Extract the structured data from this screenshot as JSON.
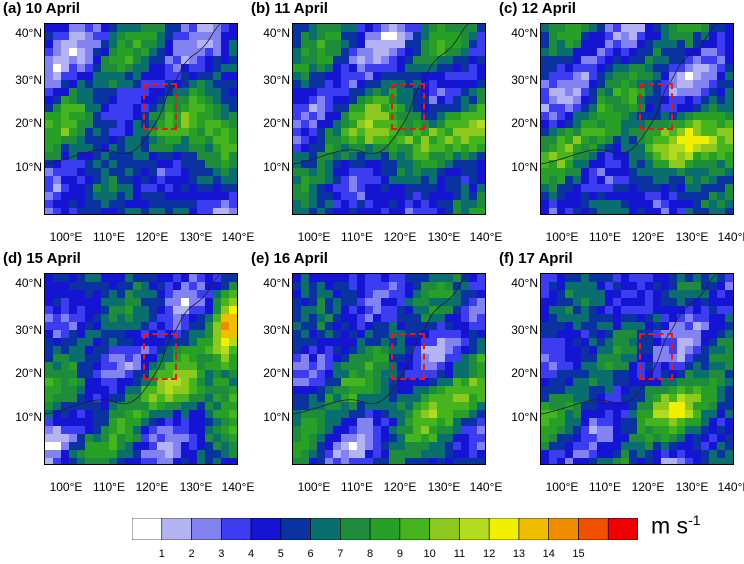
{
  "panels": [
    {
      "title": "(a) 10 April"
    },
    {
      "title": "(b) 11 April"
    },
    {
      "title": "(c) 12 April"
    },
    {
      "title": "(d) 15 April"
    },
    {
      "title": "(e) 16 April"
    },
    {
      "title": "(f) 17 April"
    }
  ],
  "axes": {
    "y_ticks": [
      "40°N",
      "30°N",
      "20°N",
      "10°N"
    ],
    "x_ticks": [
      "100°E",
      "110°E",
      "120°E",
      "130°E",
      "140°E"
    ]
  },
  "colorbar": {
    "colors": [
      "#ffffff",
      "#b4b4f5",
      "#8282f0",
      "#3c3cf0",
      "#1414d2",
      "#0a32a0",
      "#0a6e6e",
      "#1e8c3c",
      "#28a028",
      "#46b41e",
      "#8cc81e",
      "#b4dc1e",
      "#f0f000",
      "#f0be00",
      "#f08c00",
      "#f05000",
      "#f00000"
    ],
    "labels": [
      "1",
      "2",
      "3",
      "4",
      "5",
      "6",
      "7",
      "8",
      "9",
      "10",
      "11",
      "12",
      "13",
      "14",
      "15"
    ],
    "unit_base": "m s",
    "unit_exp": "-1"
  },
  "highlight_box_color": "#e41a1c"
}
